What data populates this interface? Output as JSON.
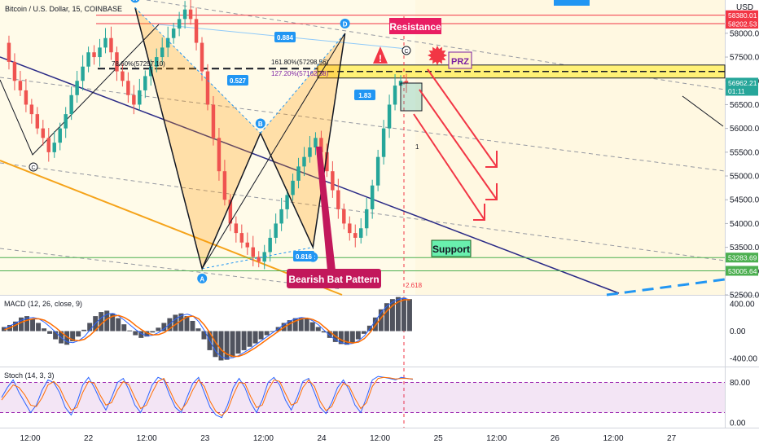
{
  "header": {
    "title": "Bitcoin / U.S. Dollar, 15, COINBASE",
    "currency": "USD"
  },
  "chart_data": {
    "type": "line",
    "symbol": "Bitcoin / U.S. Dollar",
    "interval": "15",
    "exchange": "COINBASE",
    "price_axis": {
      "range": [
        52500,
        58700
      ],
      "ticks": [
        52500,
        53000,
        53500,
        54000,
        54500,
        55000,
        55500,
        56000,
        56500,
        57000,
        57500,
        58000
      ],
      "tick_labels": [
        "52500.00",
        "53000.00",
        "53500.00",
        "54000.00",
        "54500.00",
        "55000.00",
        "55500.00",
        "56000.00",
        "56500.00",
        "57000.00",
        "57500.00",
        "58000.00"
      ]
    },
    "time_axis": {
      "ticks": [
        0,
        1,
        2,
        3,
        4,
        5,
        6,
        7,
        8,
        9,
        10,
        11
      ],
      "tick_labels": [
        "12:00",
        "22",
        "12:00",
        "23",
        "12:00",
        "24",
        "12:00",
        "25",
        "12:00",
        "26",
        "12:00",
        "27"
      ]
    },
    "price_labels": [
      {
        "value": 58380.01,
        "text": "58380.01",
        "color": "#f23645"
      },
      {
        "value": 58202.53,
        "text": "58202.53",
        "color": "#f23645"
      },
      {
        "value": 56962.21,
        "text": "56962.21",
        "color": "#26a69a",
        "sub": "01:11"
      },
      {
        "value": 53283.69,
        "text": "53283.69",
        "color": "#4caf50"
      },
      {
        "value": 53005.64,
        "text": "53005.64",
        "color": "#4caf50"
      }
    ],
    "pattern": {
      "name": "Bearish Bat Pattern",
      "points": [
        {
          "label": "X",
          "t": 1.8,
          "price": 58540
        },
        {
          "label": "A",
          "t": 2.95,
          "price": 53050
        },
        {
          "label": "B",
          "t": 3.95,
          "price": 55900
        },
        {
          "label": "C",
          "t": 4.85,
          "price": 53500
        },
        {
          "label": "D",
          "t": 5.4,
          "price": 58000
        }
      ],
      "ratios": [
        {
          "text": "0.884"
        },
        {
          "text": "0.527"
        },
        {
          "text": "1.83"
        },
        {
          "text": "0.816"
        },
        {
          "text": "2.618"
        }
      ],
      "fib_levels": [
        {
          "text": "78.60%(57257.10)",
          "value": 57257.1
        },
        {
          "text": "161.80%(57298.56)",
          "value": 57298.56
        },
        {
          "text": "127.20%(57162.38)",
          "value": 57162.38
        }
      ]
    },
    "annotations": {
      "resistance": "Resistance",
      "support": "Support",
      "prz": "PRZ",
      "left_c": "C",
      "d_c": "C",
      "marker_1": "1"
    },
    "series_close": [
      57800,
      57400,
      57000,
      56800,
      56500,
      56300,
      56000,
      55800,
      55500,
      55700,
      56000,
      56300,
      56700,
      57000,
      57300,
      57600,
      57500,
      57700,
      57900,
      57600,
      57200,
      57000,
      56700,
      56500,
      56800,
      57100,
      57300,
      57500,
      57700,
      57900,
      58100,
      58300,
      58500,
      58300,
      57800,
      57200,
      56500,
      55800,
      55100,
      54500,
      54000,
      53800,
      53600,
      53500,
      53300,
      53200,
      53400,
      53700,
      54000,
      54300,
      54600,
      54900,
      55200,
      55400,
      55600,
      55800,
      55500,
      55100,
      54700,
      54300,
      54000,
      53800,
      53700,
      53900,
      54300,
      54800,
      55400,
      56000,
      56500,
      56900,
      57000,
      56950
    ],
    "macd": {
      "label": "MACD (12, 26, close, 9)",
      "range": [
        -520,
        520
      ],
      "ticks": [
        400,
        0,
        -400
      ],
      "tick_labels": [
        "400.00",
        "0.00",
        "-400.00"
      ],
      "hist": [
        60,
        90,
        140,
        200,
        220,
        180,
        120,
        40,
        -40,
        -120,
        -180,
        -200,
        -150,
        -80,
        20,
        120,
        220,
        280,
        300,
        260,
        190,
        100,
        10,
        -60,
        -100,
        -80,
        -20,
        50,
        120,
        190,
        240,
        260,
        220,
        150,
        40,
        -120,
        -280,
        -380,
        -430,
        -420,
        -380,
        -330,
        -280,
        -230,
        -180,
        -120,
        -60,
        0,
        60,
        120,
        160,
        190,
        200,
        180,
        130,
        60,
        -20,
        -100,
        -160,
        -190,
        -200,
        -170,
        -120,
        -40,
        80,
        200,
        320,
        410,
        470,
        500,
        490,
        470
      ],
      "macd_line": [
        40,
        80,
        120,
        160,
        190,
        200,
        180,
        130,
        60,
        -20,
        -100,
        -160,
        -170,
        -140,
        -80,
        20,
        120,
        200,
        250,
        260,
        220,
        160,
        90,
        20,
        -40,
        -70,
        -60,
        -20,
        40,
        110,
        180,
        230,
        250,
        220,
        140,
        10,
        -150,
        -300,
        -380,
        -400,
        -390,
        -360,
        -310,
        -260,
        -200,
        -140,
        -80,
        -20,
        40,
        100,
        150,
        180,
        200,
        190,
        150,
        90,
        10,
        -70,
        -130,
        -170,
        -190,
        -180,
        -140,
        -70,
        40,
        160,
        280,
        370,
        430,
        470,
        480,
        460
      ],
      "signal_line": [
        20,
        50,
        90,
        130,
        160,
        180,
        180,
        160,
        110,
        50,
        -20,
        -90,
        -130,
        -140,
        -120,
        -60,
        20,
        110,
        180,
        220,
        230,
        200,
        150,
        80,
        20,
        -30,
        -55,
        -50,
        -20,
        40,
        100,
        160,
        210,
        220,
        180,
        90,
        -30,
        -170,
        -280,
        -340,
        -370,
        -370,
        -340,
        -290,
        -240,
        -180,
        -120,
        -60,
        0,
        60,
        110,
        150,
        180,
        190,
        170,
        130,
        60,
        -10,
        -80,
        -130,
        -160,
        -175,
        -160,
        -110,
        -20,
        90,
        200,
        300,
        380,
        430,
        460,
        460
      ]
    },
    "stoch": {
      "label": "Stoch (14, 3, 3)",
      "range": [
        -10,
        110
      ],
      "ticks": [
        80,
        0
      ],
      "tick_labels": [
        "80.00",
        "0.00"
      ],
      "k": [
        50,
        70,
        85,
        60,
        40,
        20,
        35,
        65,
        85,
        80,
        60,
        30,
        15,
        40,
        75,
        90,
        70,
        45,
        25,
        50,
        80,
        88,
        65,
        35,
        20,
        45,
        75,
        90,
        85,
        55,
        30,
        20,
        50,
        78,
        90,
        60,
        30,
        15,
        10,
        35,
        70,
        88,
        70,
        40,
        20,
        45,
        80,
        90,
        75,
        45,
        25,
        50,
        82,
        88,
        60,
        30,
        18,
        40,
        70,
        85,
        65,
        35,
        20,
        50,
        85,
        92,
        90,
        88,
        85,
        90,
        88,
        86
      ],
      "d": [
        45,
        60,
        75,
        70,
        55,
        35,
        32,
        50,
        75,
        82,
        70,
        45,
        25,
        30,
        60,
        82,
        78,
        55,
        35,
        40,
        65,
        82,
        75,
        50,
        28,
        35,
        60,
        82,
        88,
        65,
        40,
        25,
        40,
        65,
        85,
        72,
        42,
        22,
        14,
        25,
        55,
        80,
        78,
        52,
        30,
        35,
        65,
        85,
        82,
        58,
        35,
        40,
        70,
        85,
        72,
        42,
        24,
        32,
        58,
        78,
        72,
        48,
        28,
        40,
        72,
        88,
        90,
        89,
        87,
        88,
        88,
        87
      ]
    }
  }
}
